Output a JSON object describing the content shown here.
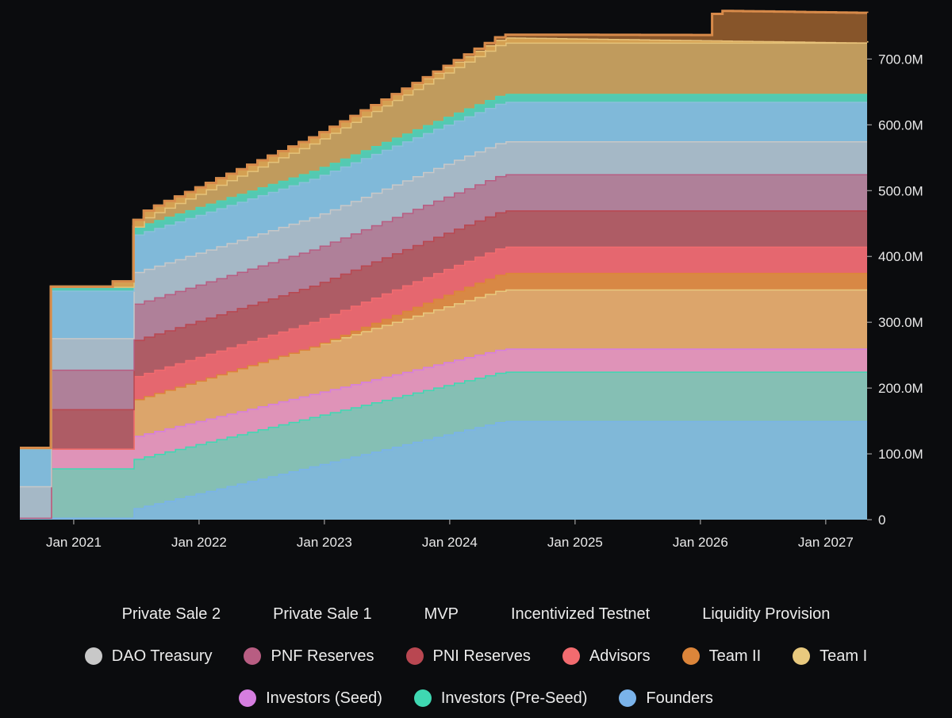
{
  "chart_data": {
    "type": "area",
    "stacked": true,
    "title": "",
    "xlabel": "",
    "ylabel": "",
    "ylim": [
      0,
      780
    ],
    "y_unit": "M",
    "y_ticks": [
      0,
      100,
      200,
      300,
      400,
      500,
      600,
      700
    ],
    "y_tick_labels": [
      "0",
      "100.0M",
      "200.0M",
      "300.0M",
      "400.0M",
      "500.0M",
      "600.0M",
      "700.0M"
    ],
    "x_tick_labels": [
      "Jan 2021",
      "Jan 2022",
      "Jan 2023",
      "Jan 2024",
      "Jan 2025",
      "Jan 2026",
      "Jan 2027"
    ],
    "x_tick_years": [
      2021,
      2022,
      2023,
      2024,
      2025,
      2026,
      2027
    ],
    "x_range": [
      2020.57,
      2027.33
    ],
    "series": [
      {
        "name": "Founders",
        "color": "#80b8d8",
        "line": "#7ab3ea",
        "points": [
          [
            2020.57,
            3
          ],
          [
            2020.8,
            3
          ],
          [
            2021.4,
            3
          ],
          [
            2021.42,
            15
          ],
          [
            2024.4,
            150
          ],
          [
            2027.33,
            150
          ]
        ]
      },
      {
        "name": "Investors (Pre-Seed)",
        "color": "#85bfb4",
        "line": "#3fd8b2",
        "points": [
          [
            2020.57,
            0
          ],
          [
            2020.8,
            0
          ],
          [
            2020.81,
            75
          ],
          [
            2021.4,
            75
          ],
          [
            2021.42,
            75
          ],
          [
            2024.4,
            75
          ],
          [
            2027.33,
            75
          ]
        ]
      },
      {
        "name": "Investors (Seed)",
        "color": "#df93b8",
        "line": "#d67ee0",
        "points": [
          [
            2020.57,
            0
          ],
          [
            2020.8,
            0
          ],
          [
            2020.81,
            30
          ],
          [
            2021.4,
            30
          ],
          [
            2021.42,
            35
          ],
          [
            2024.4,
            35
          ],
          [
            2027.33,
            35
          ]
        ]
      },
      {
        "name": "Team I",
        "color": "#dca56b",
        "line": "#e8c97e",
        "points": [
          [
            2020.57,
            0
          ],
          [
            2021.4,
            0
          ],
          [
            2021.42,
            55
          ],
          [
            2024.4,
            90
          ],
          [
            2027.33,
            90
          ]
        ]
      },
      {
        "name": "Team II",
        "color": "#d88845",
        "line": "#dc853a",
        "points": [
          [
            2020.57,
            0
          ],
          [
            2022.9,
            0
          ],
          [
            2024.4,
            25
          ],
          [
            2027.33,
            25
          ]
        ]
      },
      {
        "name": "Advisors",
        "color": "#e5676f",
        "line": "#f26b6f",
        "points": [
          [
            2020.57,
            0
          ],
          [
            2021.4,
            0
          ],
          [
            2021.42,
            35
          ],
          [
            2024.4,
            40
          ],
          [
            2027.33,
            40
          ]
        ]
      },
      {
        "name": "PNI Reserves",
        "color": "#ae5c65",
        "line": "#b94751",
        "points": [
          [
            2020.57,
            0
          ],
          [
            2020.8,
            0
          ],
          [
            2020.81,
            60
          ],
          [
            2021.4,
            60
          ],
          [
            2021.42,
            55
          ],
          [
            2024.4,
            55
          ],
          [
            2027.33,
            55
          ]
        ]
      },
      {
        "name": "PNF Reserves",
        "color": "#af8099",
        "line": "#b85d82",
        "points": [
          [
            2020.57,
            0
          ],
          [
            2020.8,
            0
          ],
          [
            2020.81,
            60
          ],
          [
            2021.4,
            60
          ],
          [
            2021.42,
            55
          ],
          [
            2024.4,
            55
          ],
          [
            2027.33,
            55
          ]
        ]
      },
      {
        "name": "DAO Treasury",
        "color": "#a5b8c6",
        "line": "#c8c8c8",
        "points": [
          [
            2020.57,
            48
          ],
          [
            2020.8,
            48
          ],
          [
            2020.81,
            48
          ],
          [
            2021.4,
            48
          ],
          [
            2021.42,
            48
          ],
          [
            2024.4,
            50
          ],
          [
            2027.33,
            50
          ]
        ]
      },
      {
        "name": "Liquidity Provision",
        "color": "#80b9d9",
        "line": "#8bc0da",
        "points": [
          [
            2020.57,
            58
          ],
          [
            2020.8,
            58
          ],
          [
            2020.81,
            72
          ],
          [
            2021.4,
            72
          ],
          [
            2021.42,
            57
          ],
          [
            2024.4,
            60
          ],
          [
            2027.33,
            60
          ]
        ]
      },
      {
        "name": "Incentivized Testnet",
        "color": "#54c9b2",
        "line": "#4fd1b0",
        "points": [
          [
            2020.57,
            0
          ],
          [
            2020.8,
            0
          ],
          [
            2020.81,
            6
          ],
          [
            2021.4,
            6
          ],
          [
            2021.42,
            12
          ],
          [
            2024.4,
            12
          ],
          [
            2027.33,
            12
          ]
        ]
      },
      {
        "name": "MVP",
        "color": "#c09b5d",
        "line": "#e5c37a",
        "points": [
          [
            2020.57,
            0
          ],
          [
            2020.8,
            0
          ],
          [
            2020.81,
            0
          ],
          [
            2021.55,
            0
          ],
          [
            2021.56,
            10
          ],
          [
            2024.4,
            78
          ],
          [
            2027.33,
            78
          ]
        ]
      },
      {
        "name": "Private Sale 1",
        "color": "#d4a052",
        "line": "#e8c27a",
        "points": [
          [
            2020.57,
            0
          ],
          [
            2021.3,
            0
          ],
          [
            2021.31,
            8
          ],
          [
            2021.4,
            8
          ],
          [
            2021.42,
            10
          ],
          [
            2024.4,
            8
          ],
          [
            2027.33,
            0
          ]
        ]
      },
      {
        "name": "Private Sale 2",
        "color": "#87552a",
        "line": "#d78a4a",
        "points": [
          [
            2020.57,
            0
          ],
          [
            2023.6,
            0
          ],
          [
            2024.4,
            4
          ],
          [
            2026.05,
            8
          ],
          [
            2026.1,
            45
          ],
          [
            2027.33,
            45
          ]
        ]
      }
    ]
  },
  "legend": {
    "row1": [
      {
        "label": "Private Sale 2"
      },
      {
        "label": "Private Sale 1"
      },
      {
        "label": "MVP"
      },
      {
        "label": "Incentivized Testnet"
      },
      {
        "label": "Liquidity Provision"
      }
    ],
    "row2": [
      {
        "label": "DAO Treasury",
        "color": "#c8c8c8"
      },
      {
        "label": "PNF Reserves",
        "color": "#b85d82"
      },
      {
        "label": "PNI Reserves",
        "color": "#b94751"
      },
      {
        "label": "Advisors",
        "color": "#f26b6f"
      },
      {
        "label": "Team II",
        "color": "#dc853a"
      },
      {
        "label": "Team I",
        "color": "#e8c97e"
      }
    ],
    "row3": [
      {
        "label": "Investors (Seed)",
        "color": "#d67ee0"
      },
      {
        "label": "Investors (Pre-Seed)",
        "color": "#3fd8b2"
      },
      {
        "label": "Founders",
        "color": "#7ab3ea"
      }
    ]
  }
}
